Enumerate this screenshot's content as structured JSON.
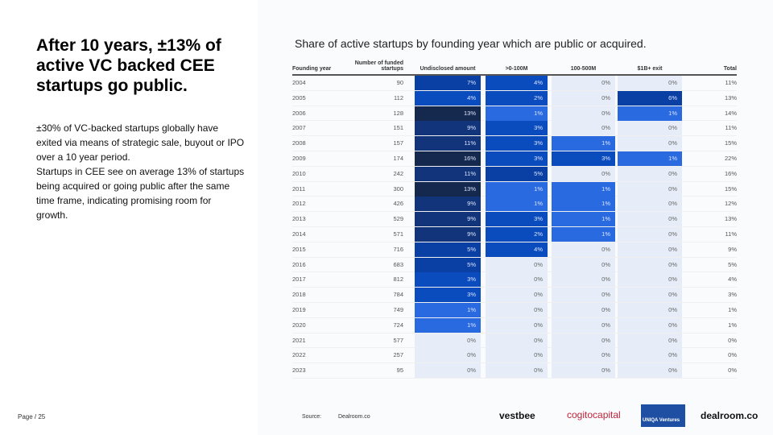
{
  "slide": {
    "title": "After 10 years, ±13% of active VC backed CEE startups go public.",
    "paragraphs": [
      "±30% of VC-backed startups globally have exited via means of strategic sale, buyout or IPO over a 10 year period.",
      "Startups in CEE see on average 13% of startups being acquired or going public after the same time frame, indicating promising room for growth."
    ],
    "page": "Page / 25",
    "source_label": "Source:",
    "source": "Dealroom.co",
    "logos": [
      "vestbee",
      "cogitocapital",
      "UNIQA Ventures",
      "dealroom.co"
    ]
  },
  "chart_data": {
    "type": "heatmap",
    "title": "Share of active startups by founding year which are public or acquired.",
    "columns": [
      "Founding year",
      "Number of funded startups",
      "Undisclosed amount",
      ">0-100M",
      "100-500M",
      "$1B+ exit",
      "Total"
    ],
    "rows": [
      [
        "2004",
        90,
        7,
        4,
        0,
        0,
        11
      ],
      [
        "2005",
        112,
        4,
        2,
        0,
        6,
        13
      ],
      [
        "2006",
        128,
        13,
        1,
        0,
        1,
        14
      ],
      [
        "2007",
        151,
        9,
        3,
        0,
        0,
        11
      ],
      [
        "2008",
        157,
        11,
        3,
        1,
        0,
        15
      ],
      [
        "2009",
        174,
        16,
        3,
        3,
        1,
        22
      ],
      [
        "2010",
        242,
        11,
        5,
        0,
        0,
        16
      ],
      [
        "2011",
        300,
        13,
        1,
        1,
        0,
        15
      ],
      [
        "2012",
        426,
        9,
        1,
        1,
        0,
        12
      ],
      [
        "2013",
        529,
        9,
        3,
        1,
        0,
        13
      ],
      [
        "2014",
        571,
        9,
        2,
        1,
        0,
        11
      ],
      [
        "2015",
        716,
        5,
        4,
        0,
        0,
        9
      ],
      [
        "2016",
        683,
        5,
        0,
        0,
        0,
        5
      ],
      [
        "2017",
        812,
        3,
        0,
        0,
        0,
        4
      ],
      [
        "2018",
        784,
        3,
        0,
        0,
        0,
        3
      ],
      [
        "2019",
        749,
        1,
        0,
        0,
        0,
        1
      ],
      [
        "2020",
        724,
        1,
        0,
        0,
        0,
        1
      ],
      [
        "2021",
        577,
        0,
        0,
        0,
        0,
        0
      ],
      [
        "2022",
        257,
        0,
        0,
        0,
        0,
        0
      ],
      [
        "2023",
        95,
        0,
        0,
        0,
        0,
        0
      ]
    ],
    "unit": "%"
  }
}
